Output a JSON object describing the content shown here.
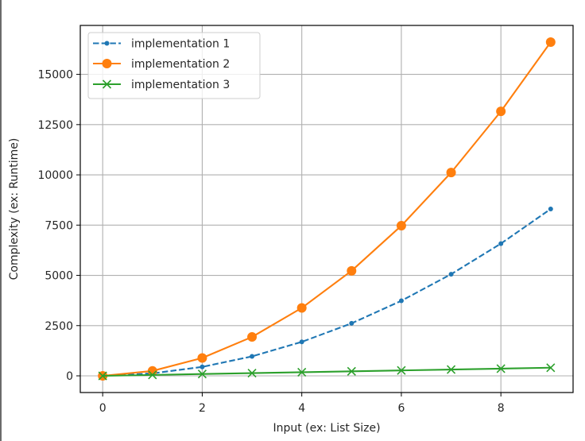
{
  "chart_data": {
    "type": "line",
    "title": "",
    "xlabel": "Input (ex: List Size)",
    "ylabel": "Complexity (ex: Runtime)",
    "x": [
      0,
      1,
      2,
      3,
      4,
      5,
      6,
      7,
      8,
      9
    ],
    "xlim": [
      -0.45,
      9.45
    ],
    "ylim": [
      -830,
      17435
    ],
    "xticks": [
      0,
      2,
      4,
      6,
      8
    ],
    "xtick_labels": [
      "0",
      "2",
      "4",
      "6",
      "8"
    ],
    "yticks": [
      0,
      2500,
      5000,
      7500,
      10000,
      12500,
      15000
    ],
    "ytick_labels": [
      "0",
      "2500",
      "5000",
      "7500",
      "10000",
      "12500",
      "15000"
    ],
    "grid": true,
    "legend_position": "upper left",
    "series": [
      {
        "name": "implementation 1",
        "color": "#1f77b4",
        "linestyle": "dashed",
        "marker": "point",
        "values": [
          0,
          123,
          445,
          968,
          1690,
          2613,
          3735,
          5058,
          6580,
          8303
        ]
      },
      {
        "name": "implementation 2",
        "color": "#ff7f0e",
        "linestyle": "solid",
        "marker": "circle",
        "values": [
          0,
          245,
          890,
          1935,
          3380,
          5225,
          7470,
          10115,
          13160,
          16605
        ]
      },
      {
        "name": "implementation 3",
        "color": "#2ca02c",
        "linestyle": "solid",
        "marker": "x",
        "values": [
          0,
          45,
          90,
          135,
          180,
          225,
          270,
          315,
          360,
          405
        ]
      }
    ]
  },
  "colors": {
    "axis": "#000000",
    "grid": "#b0b0b0",
    "text": "#262626",
    "legend_border": "#cccccc",
    "left_frame": "#6b6b6b"
  }
}
